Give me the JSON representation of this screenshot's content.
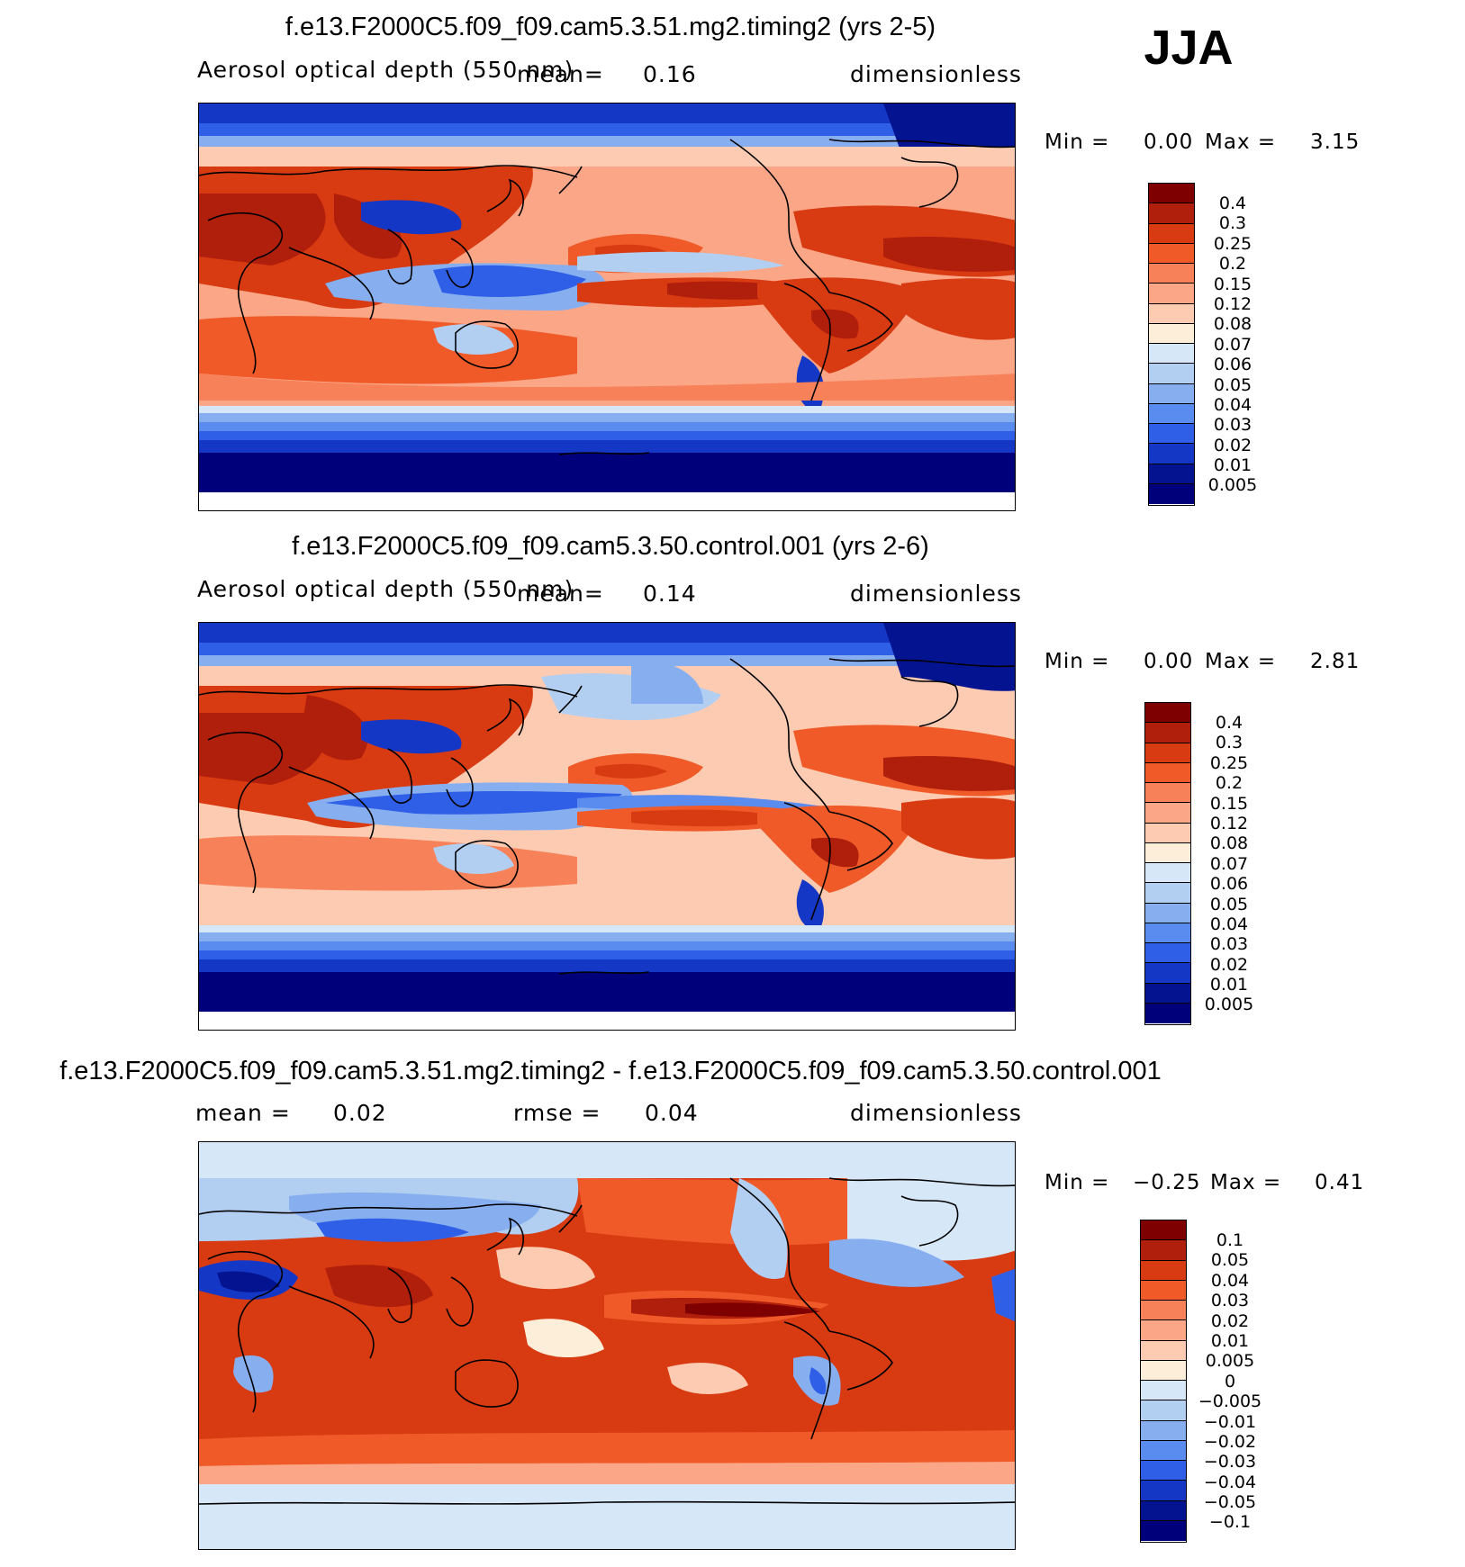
{
  "season": "JJA",
  "panels": [
    {
      "title": "f.e13.F2000C5.f09_f09.cam5.3.51.mg2.timing2 (yrs 2-5)",
      "variable": "Aerosol optical depth (550 nm)",
      "mean_label": "mean=",
      "mean_value": "0.16",
      "units": "dimensionless",
      "min_label": "Min =",
      "min_value": "0.00",
      "max_label": "Max =",
      "max_value": "3.15",
      "colorbar_labels": [
        "0.4",
        "0.3",
        "0.25",
        "0.2",
        "0.15",
        "0.12",
        "0.08",
        "0.07",
        "0.06",
        "0.05",
        "0.04",
        "0.03",
        "0.02",
        "0.01",
        "0.005"
      ]
    },
    {
      "title": "f.e13.F2000C5.f09_f09.cam5.3.50.control.001 (yrs 2-6)",
      "variable": "Aerosol optical depth (550 nm)",
      "mean_label": "mean=",
      "mean_value": "0.14",
      "units": "dimensionless",
      "min_label": "Min =",
      "min_value": "0.00",
      "max_label": "Max =",
      "max_value": "2.81",
      "colorbar_labels": [
        "0.4",
        "0.3",
        "0.25",
        "0.2",
        "0.15",
        "0.12",
        "0.08",
        "0.07",
        "0.06",
        "0.05",
        "0.04",
        "0.03",
        "0.02",
        "0.01",
        "0.005"
      ]
    },
    {
      "title": "f.e13.F2000C5.f09_f09.cam5.3.51.mg2.timing2 - f.e13.F2000C5.f09_f09.cam5.3.50.control.001",
      "mean_label": "mean =",
      "mean_value": "0.02",
      "rmse_label": "rmse =",
      "rmse_value": "0.04",
      "units": "dimensionless",
      "min_label": "Min =",
      "min_value": "−0.25",
      "max_label": "Max =",
      "max_value": "0.41",
      "colorbar_labels": [
        "0.1",
        "0.05",
        "0.04",
        "0.03",
        "0.02",
        "0.01",
        "0.005",
        "0",
        "−0.005",
        "−0.01",
        "−0.02",
        "−0.03",
        "−0.04",
        "−0.05",
        "−0.1"
      ]
    }
  ],
  "colors": {
    "abs_scale": [
      "#7f0000",
      "#b01e0c",
      "#d83a12",
      "#ef5a28",
      "#f7825a",
      "#fba787",
      "#fdcbb2",
      "#fdeed9",
      "#d6e7f7",
      "#b2cff2",
      "#87aff0",
      "#5a8bee",
      "#2f5fe6",
      "#1437c6",
      "#04138f",
      "#00007a"
    ],
    "diff_scale": [
      "#7f0000",
      "#b01e0c",
      "#d83a12",
      "#ef5a28",
      "#f7825a",
      "#fba787",
      "#fdcbb2",
      "#fdeed9",
      "#d6e7f7",
      "#b2cff2",
      "#87aff0",
      "#5a8bee",
      "#2f5fe6",
      "#1437c6",
      "#04138f",
      "#00007a"
    ]
  }
}
